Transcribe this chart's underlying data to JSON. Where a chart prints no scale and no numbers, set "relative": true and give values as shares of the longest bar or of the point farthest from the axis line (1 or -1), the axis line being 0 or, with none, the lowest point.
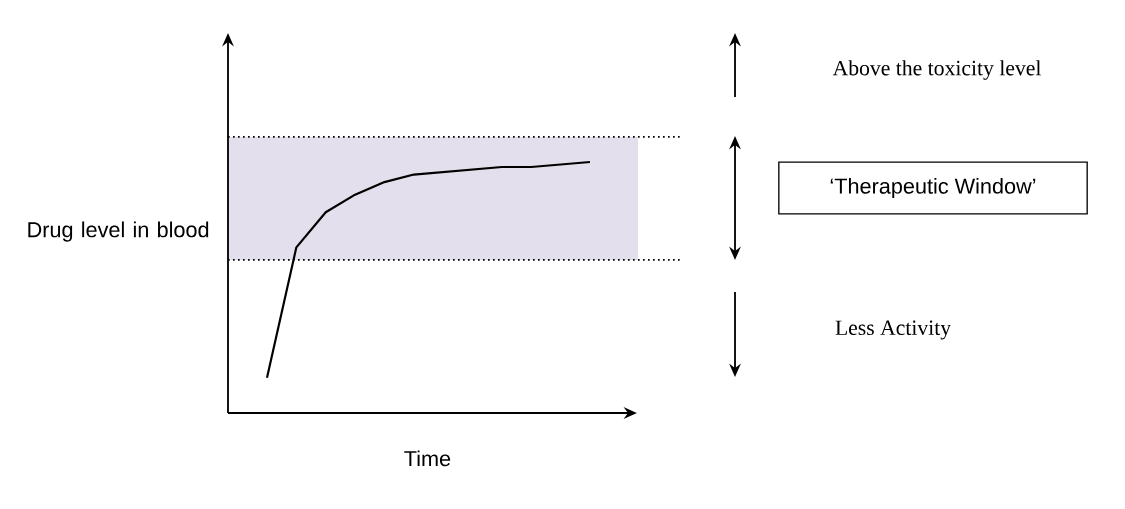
{
  "chart_data": {
    "type": "line",
    "relative": true,
    "xlabel": "Time",
    "ylabel": "Drug level in blood",
    "categories": [
      null,
      null,
      null,
      null,
      null,
      null,
      null,
      null,
      null,
      null,
      null,
      null
    ],
    "series": [
      {
        "color": "#000000",
        "values": [
          0.14,
          0.66,
          0.8,
          0.87,
          0.92,
          0.95,
          0.96,
          0.97,
          0.98,
          0.98,
          0.99,
          1.0
        ]
      }
    ],
    "bands": [
      {
        "axis": "y",
        "from": 0.61,
        "to": 1.1,
        "color": "#e4dfec"
      }
    ],
    "ref_lines": [
      {
        "axis": "y",
        "value": 0.61,
        "line_style": "dotted"
      },
      {
        "axis": "y",
        "value": 1.1,
        "line_style": "dotted"
      }
    ],
    "annotations": [
      "Above the toxicity level",
      "‘Therapeutic Window’",
      "Less Activity"
    ],
    "line_style": "solid"
  }
}
